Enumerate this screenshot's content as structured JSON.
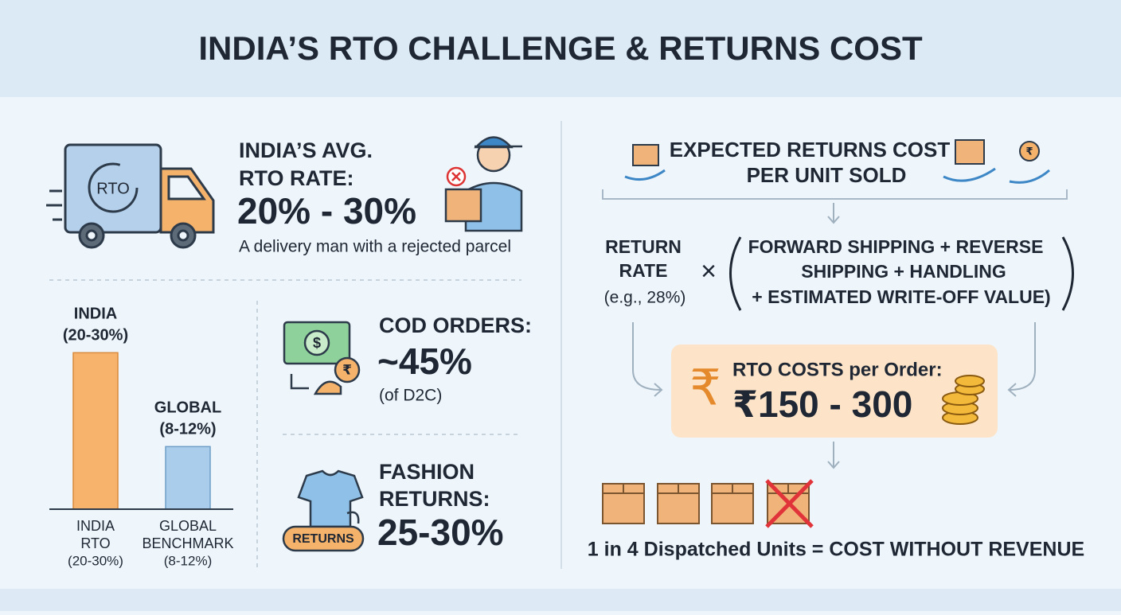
{
  "header": {
    "title": "INDIA’S RTO CHALLENGE & RETURNS COST"
  },
  "rto_rate": {
    "truck_label": "RTO",
    "label_lines": [
      "INDIA’S AVG.",
      "RTO RATE:"
    ],
    "value": "20% - 30%",
    "caption": "A delivery man with a rejected parcel"
  },
  "bar_chart": {
    "type": "bar",
    "bar_labels": [
      [
        "INDIA",
        "(20-30%)"
      ],
      [
        "GLOBAL",
        "(8-12%)"
      ]
    ],
    "categories": [
      [
        "INDIA",
        "RTO",
        "(20-30%)"
      ],
      [
        "GLOBAL",
        "BENCHMARK",
        "(8-12%)"
      ]
    ],
    "values": [
      25,
      10
    ],
    "colors": [
      "#f7b36c",
      "#a9cdea"
    ],
    "ylim": [
      0,
      30
    ]
  },
  "cod": {
    "symbols": [
      "$",
      "₹"
    ],
    "label": "COD ORDERS:",
    "value": "~45%",
    "note": "(of D2C)"
  },
  "fashion": {
    "badge": "RETURNS",
    "label_lines": [
      "FASHION",
      "RETURNS:"
    ],
    "value": "25-30%"
  },
  "returns_cost": {
    "title_lines": [
      "EXPECTED RETURNS COST",
      "PER UNIT SOLD"
    ],
    "rate_lines": [
      "RETURN",
      "RATE",
      "(e.g., 28%)"
    ],
    "operator": "×",
    "terms": [
      "FORWARD SHIPPING + REVERSE",
      "SHIPPING + HANDLING",
      "+ ESTIMATED WRITE-OFF VALUE)"
    ],
    "icon_symbol": "₹",
    "cost_label": "RTO COSTS per Order:",
    "cost_value": "₹150 - 300",
    "conclusion": "1 in 4 Dispatched Units = COST WITHOUT REVENUE"
  }
}
